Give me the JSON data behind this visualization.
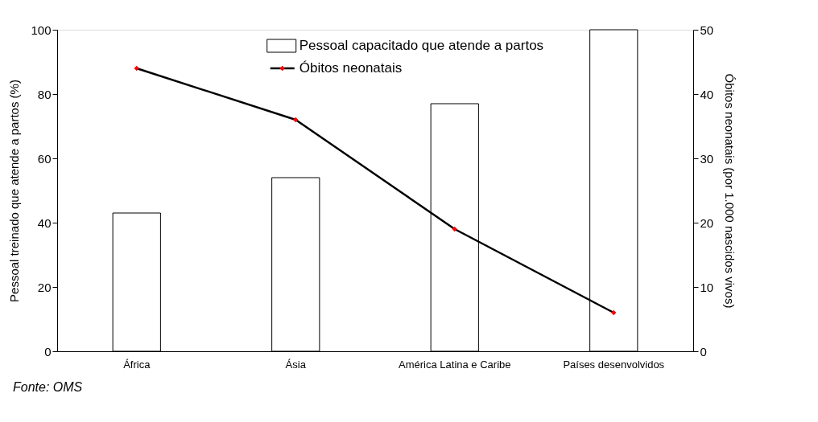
{
  "chart_data": {
    "type": "bar",
    "categories": [
      "África",
      "Ásia",
      "América Latina e Caribe",
      "Países desenvolvidos"
    ],
    "ylabel": "Pessoal treinado que atende a partos (%)",
    "y2label": "Óbitos neonatais (por 1.000 nascidos vivos)",
    "ylim": [
      0,
      100
    ],
    "yticks": [
      0,
      20,
      40,
      60,
      80,
      100
    ],
    "y2lim": [
      0,
      50
    ],
    "y2ticks": [
      0,
      10,
      20,
      30,
      40,
      50
    ],
    "series": [
      {
        "name": "Pessoal capacitado que atende a partos",
        "color": "#ffffff",
        "values": [
          43,
          54,
          77,
          100
        ]
      },
      {
        "name": "Óbitos neonatais",
        "type": "line",
        "axis": "y2",
        "color": "#000000",
        "marker": "diamond",
        "values": [
          44,
          36,
          19,
          6
        ]
      }
    ],
    "legend": "top",
    "grid": false,
    "annotations": [
      "Fonte: OMS"
    ]
  }
}
